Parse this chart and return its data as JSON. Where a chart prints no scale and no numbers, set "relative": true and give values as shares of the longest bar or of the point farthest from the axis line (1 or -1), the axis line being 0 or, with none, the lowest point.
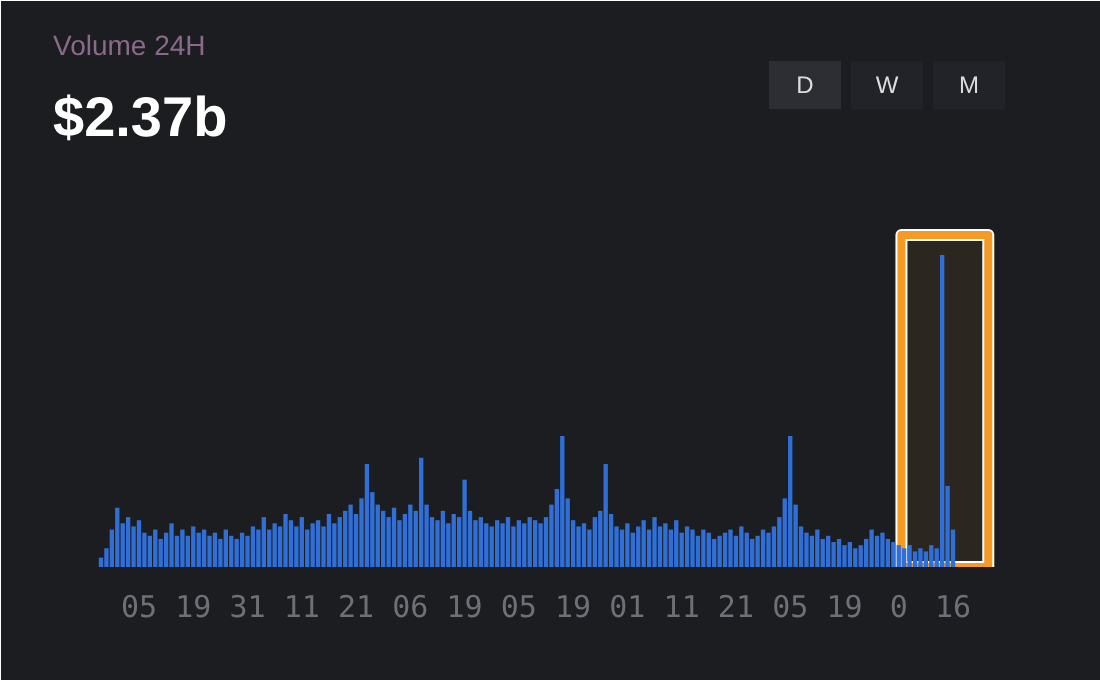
{
  "chart_data": {
    "type": "bar",
    "title": "Volume 24H",
    "subtitle": "$2.37b",
    "relative": true,
    "color": "#2f6fd6",
    "annotations": [
      "D",
      "W",
      "M"
    ],
    "categories": [
      null,
      null,
      null,
      null,
      null,
      null,
      null,
      "05",
      null,
      null,
      null,
      null,
      null,
      null,
      null,
      null,
      null,
      "19",
      null,
      null,
      null,
      null,
      null,
      null,
      null,
      null,
      null,
      "31",
      null,
      null,
      null,
      null,
      null,
      null,
      null,
      null,
      null,
      "11",
      null,
      null,
      null,
      null,
      null,
      null,
      null,
      null,
      null,
      "21",
      null,
      null,
      null,
      null,
      null,
      null,
      null,
      null,
      null,
      "06",
      null,
      null,
      null,
      null,
      null,
      null,
      null,
      null,
      null,
      "19",
      null,
      null,
      null,
      null,
      null,
      null,
      null,
      null,
      null,
      "05",
      null,
      null,
      null,
      null,
      null,
      null,
      null,
      null,
      null,
      "19",
      null,
      null,
      null,
      null,
      null,
      null,
      null,
      null,
      null,
      "01",
      null,
      null,
      null,
      null,
      null,
      null,
      null,
      null,
      null,
      "11",
      null,
      null,
      null,
      null,
      null,
      null,
      null,
      null,
      null,
      "21",
      null,
      null,
      null,
      null,
      null,
      null,
      null,
      null,
      null,
      "05",
      null,
      null,
      null,
      null,
      null,
      null,
      null,
      null,
      null,
      "19",
      null,
      null,
      null,
      null,
      null,
      null,
      null,
      null,
      null,
      "0",
      null,
      null,
      null,
      null,
      null,
      null,
      null,
      null,
      null,
      "16"
    ],
    "values": [
      0.03,
      0.06,
      0.12,
      0.19,
      0.14,
      0.16,
      0.13,
      0.15,
      0.11,
      0.1,
      0.12,
      0.09,
      0.11,
      0.14,
      0.1,
      0.12,
      0.1,
      0.13,
      0.11,
      0.12,
      0.1,
      0.11,
      0.09,
      0.12,
      0.1,
      0.09,
      0.11,
      0.1,
      0.13,
      0.12,
      0.16,
      0.12,
      0.14,
      0.13,
      0.17,
      0.15,
      0.13,
      0.16,
      0.12,
      0.14,
      0.15,
      0.13,
      0.17,
      0.14,
      0.16,
      0.18,
      0.2,
      0.17,
      0.22,
      0.33,
      0.24,
      0.2,
      0.18,
      0.16,
      0.19,
      0.15,
      0.17,
      0.2,
      0.18,
      0.35,
      0.2,
      0.16,
      0.15,
      0.18,
      0.14,
      0.17,
      0.16,
      0.28,
      0.18,
      0.15,
      0.16,
      0.14,
      0.13,
      0.15,
      0.14,
      0.16,
      0.13,
      0.15,
      0.14,
      0.16,
      0.15,
      0.14,
      0.16,
      0.2,
      0.25,
      0.42,
      0.22,
      0.15,
      0.13,
      0.14,
      0.12,
      0.16,
      0.18,
      0.33,
      0.17,
      0.13,
      0.12,
      0.14,
      0.11,
      0.13,
      0.15,
      0.12,
      0.16,
      0.13,
      0.14,
      0.12,
      0.15,
      0.11,
      0.13,
      0.12,
      0.1,
      0.12,
      0.11,
      0.09,
      0.1,
      0.11,
      0.12,
      0.1,
      0.13,
      0.11,
      0.09,
      0.1,
      0.12,
      0.11,
      0.13,
      0.16,
      0.22,
      0.42,
      0.2,
      0.13,
      0.11,
      0.1,
      0.12,
      0.09,
      0.1,
      0.08,
      0.09,
      0.07,
      0.08,
      0.06,
      0.07,
      0.09,
      0.12,
      0.1,
      0.11,
      0.09,
      0.08,
      0.07,
      0.06,
      0.07,
      0.05,
      0.06,
      0.05,
      0.07,
      0.06,
      1.0,
      0.26,
      0.12
    ],
    "bands": [
      {
        "axis": "x",
        "from": "0",
        "to": "16",
        "color": "#f59b23"
      }
    ]
  }
}
